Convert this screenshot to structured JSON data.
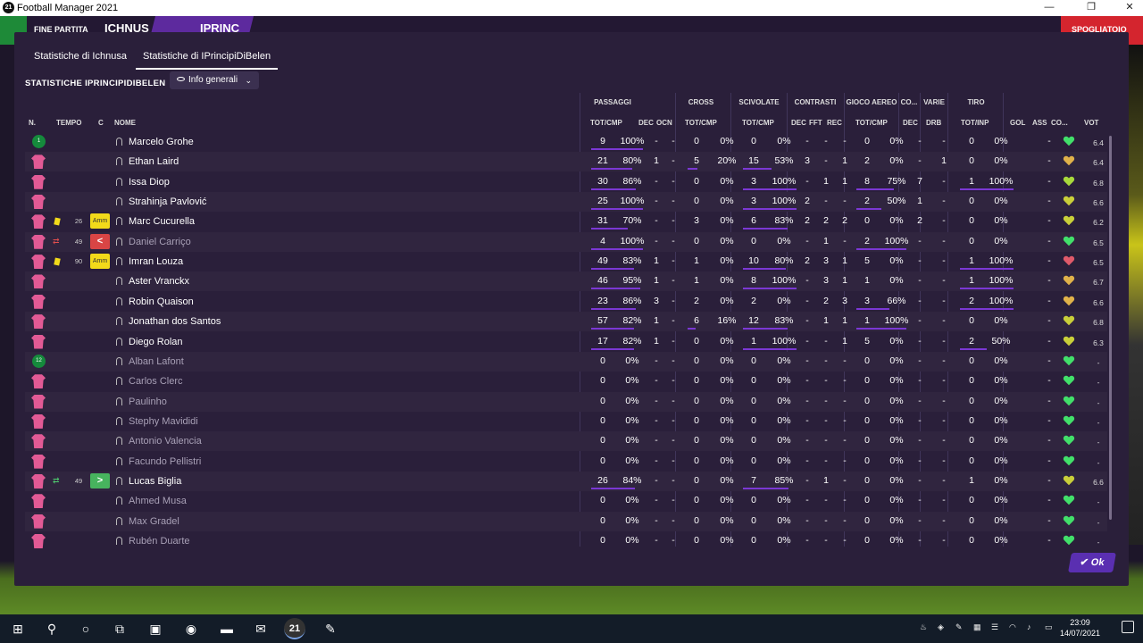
{
  "window": {
    "title": "Football Manager 2021",
    "minimize": "—",
    "maximize": "❐",
    "close": "✕"
  },
  "match_bar": {
    "left_label": "FINE PARTITA",
    "home": "ICHNUS",
    "away": "IPRINC",
    "right_label": "SPOGLIATOIO"
  },
  "tabs": [
    {
      "label": "Statistiche di Ichnusa",
      "active": false
    },
    {
      "label": "Statistiche di IPrincipiDiBelen",
      "active": true
    }
  ],
  "section_title": "STATISTICHE IPRINCIPIDIBELEN",
  "view_dropdown": {
    "label": "Info generali"
  },
  "groups": {
    "passes": "PASSAGGI",
    "cross": "CROSS",
    "tackles": "SCIVOLATE",
    "contrasts": "CONTRASTI",
    "aerial": "GIOCO AEREO",
    "co": "CO...",
    "misc": "VARIE",
    "shots": "TIRO"
  },
  "columns": {
    "n": "N.",
    "time": "TEMPO",
    "c": "C",
    "name": "NOME",
    "tot_cmp": "TOT/CMP",
    "dec": "DEC",
    "ocn": "OCN",
    "fft": "FFT",
    "rec": "REC",
    "drb": "DRB",
    "tot_inp": "TOT/INP",
    "gol": "GOL",
    "ass": "ASS",
    "co": "CO...",
    "vot": "VOT"
  },
  "players": [
    {
      "name": "Marcelo Grohe",
      "gk": true,
      "num": "1",
      "card": "",
      "time": "",
      "badge": "",
      "pas": [
        "9",
        "100%"
      ],
      "pas_pct": 100,
      "dec": "-",
      "ocn": "-",
      "cross": [
        "0",
        "0%"
      ],
      "cross_pct": 0,
      "tck": [
        "0",
        "0%"
      ],
      "tck_pct": 0,
      "cdec": "-",
      "fft": "-",
      "rec": "-",
      "aer": [
        "0",
        "0%"
      ],
      "aer_pct": 0,
      "adec": "-",
      "drb": "-",
      "shot": [
        "0",
        "0%"
      ],
      "shot_pct": 0,
      "gol": "",
      "ass": "-",
      "heart": "#42e06a",
      "vote": "6.4",
      "active": true
    },
    {
      "name": "Ethan Laird",
      "gk": false,
      "num": "",
      "card": "",
      "time": "",
      "badge": "",
      "pas": [
        "21",
        "80%"
      ],
      "pas_pct": 80,
      "dec": "1",
      "ocn": "-",
      "cross": [
        "5",
        "20%"
      ],
      "cross_pct": 20,
      "tck": [
        "15",
        "53%"
      ],
      "tck_pct": 53,
      "cdec": "3",
      "fft": "-",
      "rec": "1",
      "aer": [
        "2",
        "0%"
      ],
      "aer_pct": 0,
      "adec": "-",
      "drb": "1",
      "shot": [
        "0",
        "0%"
      ],
      "shot_pct": 0,
      "gol": "",
      "ass": "-",
      "heart": "#e0b24a",
      "vote": "6.4",
      "active": true
    },
    {
      "name": "Issa Diop",
      "gk": false,
      "num": "",
      "card": "",
      "time": "",
      "badge": "",
      "pas": [
        "30",
        "86%"
      ],
      "pas_pct": 86,
      "dec": "-",
      "ocn": "-",
      "cross": [
        "0",
        "0%"
      ],
      "cross_pct": 0,
      "tck": [
        "3",
        "100%"
      ],
      "tck_pct": 100,
      "cdec": "-",
      "fft": "1",
      "rec": "1",
      "aer": [
        "8",
        "75%"
      ],
      "aer_pct": 75,
      "adec": "7",
      "drb": "-",
      "shot": [
        "1",
        "100%"
      ],
      "shot_pct": 100,
      "gol": "",
      "ass": "-",
      "heart": "#a8d83c",
      "vote": "6.8",
      "active": true
    },
    {
      "name": "Strahinja Pavlović",
      "gk": false,
      "num": "",
      "card": "",
      "time": "",
      "badge": "",
      "pas": [
        "25",
        "100%"
      ],
      "pas_pct": 100,
      "dec": "-",
      "ocn": "-",
      "cross": [
        "0",
        "0%"
      ],
      "cross_pct": 0,
      "tck": [
        "3",
        "100%"
      ],
      "tck_pct": 100,
      "cdec": "2",
      "fft": "-",
      "rec": "-",
      "aer": [
        "2",
        "50%"
      ],
      "aer_pct": 50,
      "adec": "1",
      "drb": "-",
      "shot": [
        "0",
        "0%"
      ],
      "shot_pct": 0,
      "gol": "",
      "ass": "-",
      "heart": "#c9cf3a",
      "vote": "6.6",
      "active": true
    },
    {
      "name": "Marc Cucurella",
      "gk": false,
      "num": "",
      "card": "yellow",
      "time": "26",
      "badge": "amm",
      "pas": [
        "31",
        "70%"
      ],
      "pas_pct": 70,
      "dec": "-",
      "ocn": "-",
      "cross": [
        "3",
        "0%"
      ],
      "cross_pct": 0,
      "tck": [
        "6",
        "83%"
      ],
      "tck_pct": 83,
      "cdec": "2",
      "fft": "2",
      "rec": "2",
      "aer": [
        "0",
        "0%"
      ],
      "aer_pct": 0,
      "adec": "2",
      "drb": "-",
      "shot": [
        "0",
        "0%"
      ],
      "shot_pct": 0,
      "gol": "",
      "ass": "-",
      "heart": "#c9cf3a",
      "vote": "6.2",
      "active": true
    },
    {
      "name": "Daniel Carriço",
      "gk": false,
      "num": "",
      "card": "out",
      "time": "49",
      "badge": "out",
      "pas": [
        "4",
        "100%"
      ],
      "pas_pct": 100,
      "dec": "-",
      "ocn": "-",
      "cross": [
        "0",
        "0%"
      ],
      "cross_pct": 0,
      "tck": [
        "0",
        "0%"
      ],
      "tck_pct": 0,
      "cdec": "-",
      "fft": "1",
      "rec": "-",
      "aer": [
        "2",
        "100%"
      ],
      "aer_pct": 100,
      "adec": "-",
      "drb": "-",
      "shot": [
        "0",
        "0%"
      ],
      "shot_pct": 0,
      "gol": "",
      "ass": "-",
      "heart": "#42e06a",
      "vote": "6.5",
      "active": false
    },
    {
      "name": "Imran Louza",
      "gk": false,
      "num": "",
      "card": "yellow",
      "time": "90",
      "badge": "amm",
      "pas": [
        "49",
        "83%"
      ],
      "pas_pct": 83,
      "dec": "1",
      "ocn": "-",
      "cross": [
        "1",
        "0%"
      ],
      "cross_pct": 0,
      "tck": [
        "10",
        "80%"
      ],
      "tck_pct": 80,
      "cdec": "2",
      "fft": "3",
      "rec": "1",
      "aer": [
        "5",
        "0%"
      ],
      "aer_pct": 0,
      "adec": "-",
      "drb": "-",
      "shot": [
        "1",
        "100%"
      ],
      "shot_pct": 100,
      "gol": "",
      "ass": "-",
      "heart": "#e05a6a",
      "vote": "6.5",
      "active": true
    },
    {
      "name": "Aster Vranckx",
      "gk": false,
      "num": "",
      "card": "",
      "time": "",
      "badge": "",
      "pas": [
        "46",
        "95%"
      ],
      "pas_pct": 95,
      "dec": "1",
      "ocn": "-",
      "cross": [
        "1",
        "0%"
      ],
      "cross_pct": 0,
      "tck": [
        "8",
        "100%"
      ],
      "tck_pct": 100,
      "cdec": "-",
      "fft": "3",
      "rec": "1",
      "aer": [
        "1",
        "0%"
      ],
      "aer_pct": 0,
      "adec": "-",
      "drb": "-",
      "shot": [
        "1",
        "100%"
      ],
      "shot_pct": 100,
      "gol": "",
      "ass": "-",
      "heart": "#e0b24a",
      "vote": "6.7",
      "active": true
    },
    {
      "name": "Robin Quaison",
      "gk": false,
      "num": "",
      "card": "",
      "time": "",
      "badge": "",
      "pas": [
        "23",
        "86%"
      ],
      "pas_pct": 86,
      "dec": "3",
      "ocn": "-",
      "cross": [
        "2",
        "0%"
      ],
      "cross_pct": 0,
      "tck": [
        "2",
        "0%"
      ],
      "tck_pct": 0,
      "cdec": "-",
      "fft": "2",
      "rec": "3",
      "aer": [
        "3",
        "66%"
      ],
      "aer_pct": 66,
      "adec": "-",
      "drb": "-",
      "shot": [
        "2",
        "100%"
      ],
      "shot_pct": 100,
      "gol": "",
      "ass": "-",
      "heart": "#e0b24a",
      "vote": "6.6",
      "active": true
    },
    {
      "name": "Jonathan dos Santos",
      "gk": false,
      "num": "",
      "card": "",
      "time": "",
      "badge": "",
      "pas": [
        "57",
        "82%"
      ],
      "pas_pct": 82,
      "dec": "1",
      "ocn": "-",
      "cross": [
        "6",
        "16%"
      ],
      "cross_pct": 16,
      "tck": [
        "12",
        "83%"
      ],
      "tck_pct": 83,
      "cdec": "-",
      "fft": "1",
      "rec": "1",
      "aer": [
        "1",
        "100%"
      ],
      "aer_pct": 100,
      "adec": "-",
      "drb": "-",
      "shot": [
        "0",
        "0%"
      ],
      "shot_pct": 0,
      "gol": "",
      "ass": "-",
      "heart": "#c9cf3a",
      "vote": "6.8",
      "active": true
    },
    {
      "name": "Diego Rolan",
      "gk": false,
      "num": "",
      "card": "",
      "time": "",
      "badge": "",
      "pas": [
        "17",
        "82%"
      ],
      "pas_pct": 82,
      "dec": "1",
      "ocn": "-",
      "cross": [
        "0",
        "0%"
      ],
      "cross_pct": 0,
      "tck": [
        "1",
        "100%"
      ],
      "tck_pct": 100,
      "cdec": "-",
      "fft": "-",
      "rec": "1",
      "aer": [
        "5",
        "0%"
      ],
      "aer_pct": 0,
      "adec": "-",
      "drb": "-",
      "shot": [
        "2",
        "50%"
      ],
      "shot_pct": 50,
      "gol": "",
      "ass": "-",
      "heart": "#c9cf3a",
      "vote": "6.3",
      "active": true
    },
    {
      "name": "Alban Lafont",
      "gk": true,
      "num": "12",
      "card": "",
      "time": "",
      "badge": "",
      "pas": [
        "0",
        "0%"
      ],
      "pas_pct": 0,
      "dec": "-",
      "ocn": "-",
      "cross": [
        "0",
        "0%"
      ],
      "cross_pct": 0,
      "tck": [
        "0",
        "0%"
      ],
      "tck_pct": 0,
      "cdec": "-",
      "fft": "-",
      "rec": "-",
      "aer": [
        "0",
        "0%"
      ],
      "aer_pct": 0,
      "adec": "-",
      "drb": "-",
      "shot": [
        "0",
        "0%"
      ],
      "shot_pct": 0,
      "gol": "",
      "ass": "-",
      "heart": "#42e06a",
      "vote": "-",
      "active": false
    },
    {
      "name": "Carlos Clerc",
      "gk": false,
      "num": "",
      "card": "",
      "time": "",
      "badge": "",
      "pas": [
        "0",
        "0%"
      ],
      "pas_pct": 0,
      "dec": "-",
      "ocn": "-",
      "cross": [
        "0",
        "0%"
      ],
      "cross_pct": 0,
      "tck": [
        "0",
        "0%"
      ],
      "tck_pct": 0,
      "cdec": "-",
      "fft": "-",
      "rec": "-",
      "aer": [
        "0",
        "0%"
      ],
      "aer_pct": 0,
      "adec": "-",
      "drb": "-",
      "shot": [
        "0",
        "0%"
      ],
      "shot_pct": 0,
      "gol": "",
      "ass": "-",
      "heart": "#42e06a",
      "vote": "-",
      "active": false
    },
    {
      "name": "Paulinho",
      "gk": false,
      "num": "",
      "card": "",
      "time": "",
      "badge": "",
      "pas": [
        "0",
        "0%"
      ],
      "pas_pct": 0,
      "dec": "-",
      "ocn": "-",
      "cross": [
        "0",
        "0%"
      ],
      "cross_pct": 0,
      "tck": [
        "0",
        "0%"
      ],
      "tck_pct": 0,
      "cdec": "-",
      "fft": "-",
      "rec": "-",
      "aer": [
        "0",
        "0%"
      ],
      "aer_pct": 0,
      "adec": "-",
      "drb": "-",
      "shot": [
        "0",
        "0%"
      ],
      "shot_pct": 0,
      "gol": "",
      "ass": "-",
      "heart": "#42e06a",
      "vote": "-",
      "active": false
    },
    {
      "name": "Stephy Mavididi",
      "gk": false,
      "num": "",
      "card": "",
      "time": "",
      "badge": "",
      "pas": [
        "0",
        "0%"
      ],
      "pas_pct": 0,
      "dec": "-",
      "ocn": "-",
      "cross": [
        "0",
        "0%"
      ],
      "cross_pct": 0,
      "tck": [
        "0",
        "0%"
      ],
      "tck_pct": 0,
      "cdec": "-",
      "fft": "-",
      "rec": "-",
      "aer": [
        "0",
        "0%"
      ],
      "aer_pct": 0,
      "adec": "-",
      "drb": "-",
      "shot": [
        "0",
        "0%"
      ],
      "shot_pct": 0,
      "gol": "",
      "ass": "-",
      "heart": "#42e06a",
      "vote": "-",
      "active": false
    },
    {
      "name": "Antonio Valencia",
      "gk": false,
      "num": "",
      "card": "",
      "time": "",
      "badge": "",
      "pas": [
        "0",
        "0%"
      ],
      "pas_pct": 0,
      "dec": "-",
      "ocn": "-",
      "cross": [
        "0",
        "0%"
      ],
      "cross_pct": 0,
      "tck": [
        "0",
        "0%"
      ],
      "tck_pct": 0,
      "cdec": "-",
      "fft": "-",
      "rec": "-",
      "aer": [
        "0",
        "0%"
      ],
      "aer_pct": 0,
      "adec": "-",
      "drb": "-",
      "shot": [
        "0",
        "0%"
      ],
      "shot_pct": 0,
      "gol": "",
      "ass": "-",
      "heart": "#42e06a",
      "vote": "-",
      "active": false
    },
    {
      "name": "Facundo Pellistri",
      "gk": false,
      "num": "",
      "card": "",
      "time": "",
      "badge": "",
      "pas": [
        "0",
        "0%"
      ],
      "pas_pct": 0,
      "dec": "-",
      "ocn": "-",
      "cross": [
        "0",
        "0%"
      ],
      "cross_pct": 0,
      "tck": [
        "0",
        "0%"
      ],
      "tck_pct": 0,
      "cdec": "-",
      "fft": "-",
      "rec": "-",
      "aer": [
        "0",
        "0%"
      ],
      "aer_pct": 0,
      "adec": "-",
      "drb": "-",
      "shot": [
        "0",
        "0%"
      ],
      "shot_pct": 0,
      "gol": "",
      "ass": "-",
      "heart": "#42e06a",
      "vote": "-",
      "active": false
    },
    {
      "name": "Lucas Biglia",
      "gk": false,
      "num": "",
      "card": "in",
      "time": "49",
      "badge": "in",
      "pas": [
        "26",
        "84%"
      ],
      "pas_pct": 84,
      "dec": "-",
      "ocn": "-",
      "cross": [
        "0",
        "0%"
      ],
      "cross_pct": 0,
      "tck": [
        "7",
        "85%"
      ],
      "tck_pct": 85,
      "cdec": "-",
      "fft": "1",
      "rec": "-",
      "aer": [
        "0",
        "0%"
      ],
      "aer_pct": 0,
      "adec": "-",
      "drb": "-",
      "shot": [
        "1",
        "0%"
      ],
      "shot_pct": 0,
      "gol": "",
      "ass": "-",
      "heart": "#c9cf3a",
      "vote": "6.6",
      "active": true
    },
    {
      "name": "Ahmed Musa",
      "gk": false,
      "num": "",
      "card": "",
      "time": "",
      "badge": "",
      "pas": [
        "0",
        "0%"
      ],
      "pas_pct": 0,
      "dec": "-",
      "ocn": "-",
      "cross": [
        "0",
        "0%"
      ],
      "cross_pct": 0,
      "tck": [
        "0",
        "0%"
      ],
      "tck_pct": 0,
      "cdec": "-",
      "fft": "-",
      "rec": "-",
      "aer": [
        "0",
        "0%"
      ],
      "aer_pct": 0,
      "adec": "-",
      "drb": "-",
      "shot": [
        "0",
        "0%"
      ],
      "shot_pct": 0,
      "gol": "",
      "ass": "-",
      "heart": "#42e06a",
      "vote": "-",
      "active": false
    },
    {
      "name": "Max Gradel",
      "gk": false,
      "num": "",
      "card": "",
      "time": "",
      "badge": "",
      "pas": [
        "0",
        "0%"
      ],
      "pas_pct": 0,
      "dec": "-",
      "ocn": "-",
      "cross": [
        "0",
        "0%"
      ],
      "cross_pct": 0,
      "tck": [
        "0",
        "0%"
      ],
      "tck_pct": 0,
      "cdec": "-",
      "fft": "-",
      "rec": "-",
      "aer": [
        "0",
        "0%"
      ],
      "aer_pct": 0,
      "adec": "-",
      "drb": "-",
      "shot": [
        "0",
        "0%"
      ],
      "shot_pct": 0,
      "gol": "",
      "ass": "-",
      "heart": "#42e06a",
      "vote": "-",
      "active": false
    },
    {
      "name": "Rubén Duarte",
      "gk": false,
      "num": "",
      "card": "",
      "time": "",
      "badge": "",
      "pas": [
        "0",
        "0%"
      ],
      "pas_pct": 0,
      "dec": "-",
      "ocn": "-",
      "cross": [
        "0",
        "0%"
      ],
      "cross_pct": 0,
      "tck": [
        "0",
        "0%"
      ],
      "tck_pct": 0,
      "cdec": "-",
      "fft": "-",
      "rec": "-",
      "aer": [
        "0",
        "0%"
      ],
      "aer_pct": 0,
      "adec": "-",
      "drb": "-",
      "shot": [
        "0",
        "0%"
      ],
      "shot_pct": 0,
      "gol": "",
      "ass": "-",
      "heart": "#42e06a",
      "vote": "-",
      "active": false
    }
  ],
  "badge_labels": {
    "amm": "Amm",
    "out": "<",
    "in": ">"
  },
  "ok_button": "✔ Ok",
  "taskbar": {
    "icons": [
      "windows-icon",
      "search-icon",
      "cortana-icon",
      "task-view-icon",
      "remote-desktop-icon",
      "chrome-icon",
      "file-explorer-icon",
      "mail-icon",
      "football-manager-icon",
      "paint-icon"
    ],
    "glyphs": [
      "⊞",
      "⚲",
      "○",
      "⧉",
      "▣",
      "◉",
      "▬",
      "✉",
      "21",
      "✎"
    ],
    "time": "23:09",
    "date": "14/07/2021"
  }
}
